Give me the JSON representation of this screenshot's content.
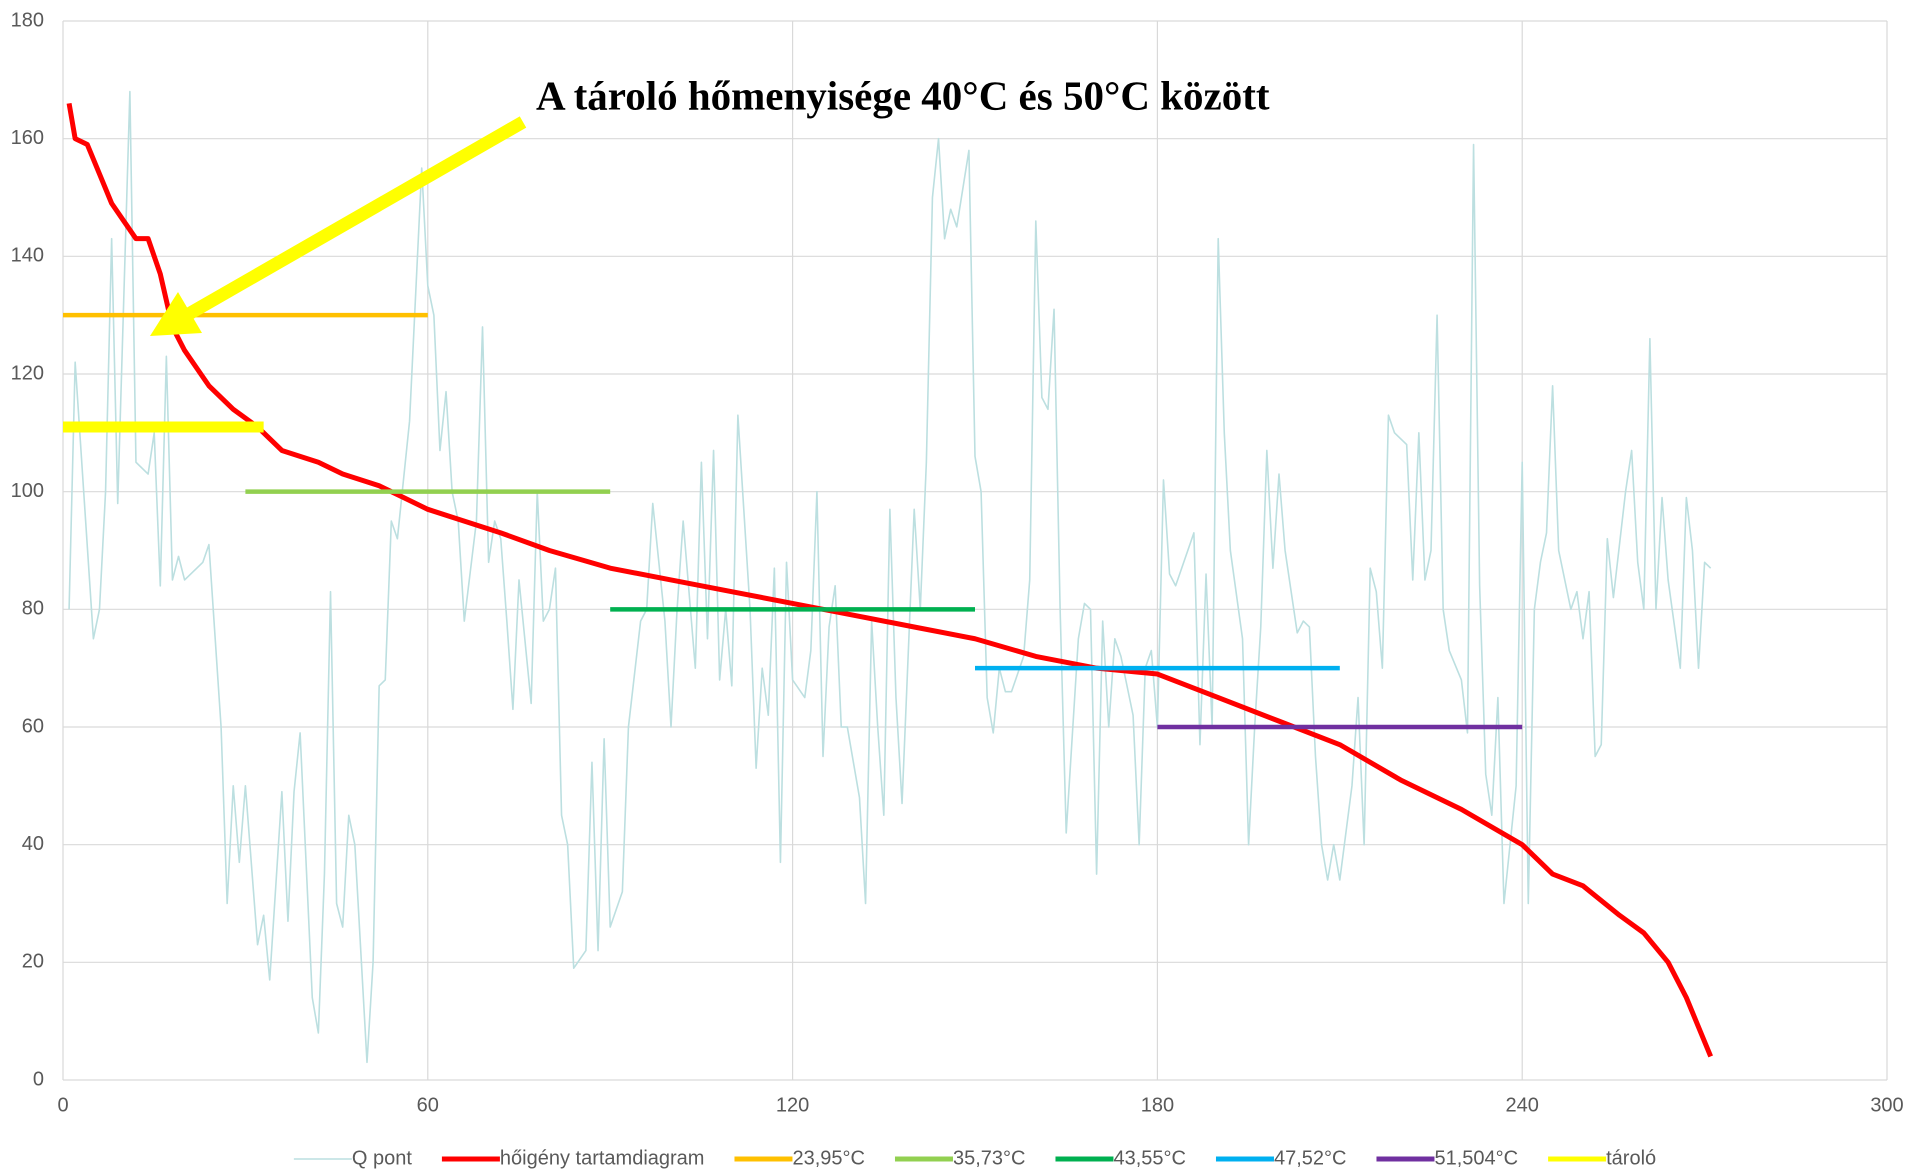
{
  "chart_data": {
    "type": "line",
    "annotation": "A tároló hőmenyisége 40°C és 50°C között",
    "xlim": [
      0,
      300
    ],
    "xticks": [
      0,
      60,
      120,
      180,
      240,
      300
    ],
    "ylim": [
      0,
      180
    ],
    "yticks": [
      0,
      20,
      40,
      60,
      80,
      100,
      120,
      140,
      160,
      180
    ],
    "grid": true,
    "legend": "bottom",
    "series": [
      {
        "name": "Q pont",
        "color": "#bcdfe0",
        "x": [
          1,
          2,
          5,
          6,
          7,
          8,
          9,
          11,
          12,
          14,
          15,
          16,
          17,
          18,
          19,
          20,
          23,
          24,
          26,
          27,
          28,
          29,
          30,
          32,
          33,
          34,
          36,
          37,
          38,
          39,
          41,
          42,
          43,
          44,
          45,
          46,
          47,
          48,
          50,
          51,
          52,
          53,
          54,
          55,
          57,
          59,
          60,
          61,
          62,
          63,
          64,
          65,
          66,
          68,
          69,
          70,
          71,
          72,
          73,
          74,
          75,
          77,
          78,
          79,
          80,
          81,
          82,
          83,
          84,
          86,
          87,
          88,
          89,
          90,
          92,
          93,
          95,
          96,
          97,
          98,
          99,
          100,
          101,
          102,
          104,
          105,
          106,
          107,
          108,
          109,
          110,
          111,
          113,
          114,
          115,
          116,
          117,
          118,
          119,
          120,
          122,
          123,
          124,
          125,
          126,
          127,
          128,
          129,
          131,
          132,
          133,
          134,
          135,
          136,
          137,
          138,
          140,
          141,
          142,
          143,
          144,
          145,
          146,
          147,
          149,
          150,
          151,
          152,
          153,
          154,
          155,
          156,
          158,
          159,
          160,
          161,
          162,
          163,
          164,
          165,
          167,
          168,
          169,
          170,
          171,
          172,
          173,
          174,
          176,
          177,
          178,
          179,
          180,
          181,
          182,
          183,
          185,
          186,
          187,
          188,
          189,
          190,
          191,
          192,
          194,
          195,
          196,
          197,
          198,
          199,
          200,
          201,
          203,
          204,
          205,
          206,
          207,
          208,
          209,
          210,
          212,
          213,
          214,
          215,
          216,
          217,
          218,
          219,
          221,
          222,
          223,
          224,
          225,
          226,
          227,
          228,
          230,
          231,
          232,
          233,
          234,
          235,
          236,
          237,
          239,
          240,
          241,
          242,
          243,
          244,
          245,
          246,
          248,
          249,
          250,
          251,
          252,
          253,
          254,
          255,
          257,
          258,
          259,
          260,
          261,
          262,
          263,
          264,
          266,
          267,
          268,
          269,
          270,
          271
        ],
        "values": [
          80,
          122,
          75,
          80,
          100,
          143,
          98,
          168,
          105,
          103,
          110,
          84,
          123,
          85,
          89,
          85,
          88,
          91,
          60,
          30,
          50,
          37,
          50,
          23,
          28,
          17,
          49,
          27,
          49,
          59,
          14,
          8,
          35,
          83,
          30,
          26,
          45,
          40,
          3,
          20,
          67,
          68,
          95,
          92,
          112,
          155,
          135,
          130,
          107,
          117,
          100,
          95,
          78,
          95,
          128,
          88,
          95,
          92,
          78,
          63,
          85,
          64,
          100,
          78,
          80,
          87,
          45,
          40,
          19,
          22,
          54,
          22,
          58,
          26,
          32,
          60,
          78,
          80,
          98,
          88,
          78,
          60,
          80,
          95,
          70,
          105,
          75,
          107,
          68,
          80,
          67,
          113,
          80,
          53,
          70,
          62,
          87,
          37,
          88,
          68,
          65,
          73,
          100,
          55,
          77,
          84,
          60,
          60,
          48,
          30,
          78,
          60,
          45,
          97,
          65,
          47,
          97,
          80,
          105,
          150,
          160,
          143,
          148,
          145,
          158,
          106,
          100,
          65,
          59,
          70,
          66,
          66,
          72,
          85,
          146,
          116,
          114,
          131,
          80,
          42,
          75,
          81,
          80,
          35,
          78,
          60,
          75,
          72,
          62,
          40,
          70,
          73,
          60,
          102,
          86,
          84,
          90,
          93,
          57,
          86,
          60,
          143,
          110,
          90,
          75,
          40,
          60,
          77,
          107,
          87,
          103,
          90,
          76,
          78,
          77,
          55,
          40,
          34,
          40,
          34,
          50,
          65,
          40,
          87,
          83,
          70,
          113,
          110,
          108,
          85,
          110,
          85,
          90,
          130,
          80,
          73,
          68,
          59,
          159,
          84,
          52,
          45,
          65,
          30,
          50,
          105,
          30,
          80,
          88,
          93,
          118,
          90,
          80,
          83,
          75,
          83,
          55,
          57,
          92,
          82,
          100,
          107,
          88,
          80,
          126,
          80,
          99,
          85,
          70,
          99,
          90,
          70,
          88,
          87
        ]
      },
      {
        "name": "hőigény tartamdiagram",
        "color": "#ff0000",
        "x": [
          1,
          2,
          4,
          6,
          8,
          10,
          12,
          14,
          16,
          18,
          20,
          22,
          24,
          28,
          32,
          36,
          42,
          46,
          52,
          56,
          60,
          66,
          72,
          80,
          90,
          100,
          110,
          120,
          130,
          140,
          150,
          160,
          170,
          180,
          190,
          200,
          210,
          220,
          230,
          240,
          245,
          250,
          256,
          260,
          264,
          267,
          269,
          271
        ],
        "values": [
          166,
          160,
          159,
          154,
          149,
          146,
          143,
          143,
          137,
          128,
          124,
          121,
          118,
          114,
          111,
          107,
          105,
          103,
          101,
          99,
          97,
          95,
          93,
          90,
          87,
          85,
          83,
          81,
          79,
          77,
          75,
          72,
          70,
          69,
          65,
          61,
          57,
          51,
          46,
          40,
          35,
          33,
          28,
          25,
          20,
          14,
          9,
          4
        ]
      },
      {
        "name": "23,95°C",
        "color": "#ffc000",
        "x": [
          0,
          60
        ],
        "values": [
          130,
          130
        ]
      },
      {
        "name": "35,73°C",
        "color": "#92d050",
        "x": [
          30,
          90
        ],
        "values": [
          100,
          100
        ]
      },
      {
        "name": "43,55°C",
        "color": "#00b050",
        "x": [
          90,
          150
        ],
        "values": [
          80,
          80
        ]
      },
      {
        "name": "47,52°C",
        "color": "#00b0f0",
        "x": [
          150,
          210
        ],
        "values": [
          70,
          70
        ]
      },
      {
        "name": "51,504°C",
        "color": "#7030a0",
        "x": [
          180,
          240
        ],
        "values": [
          60,
          60
        ]
      },
      {
        "name": "tároló",
        "color": "#ffff00",
        "x": [
          0,
          33
        ],
        "values": [
          111,
          111
        ]
      }
    ]
  }
}
